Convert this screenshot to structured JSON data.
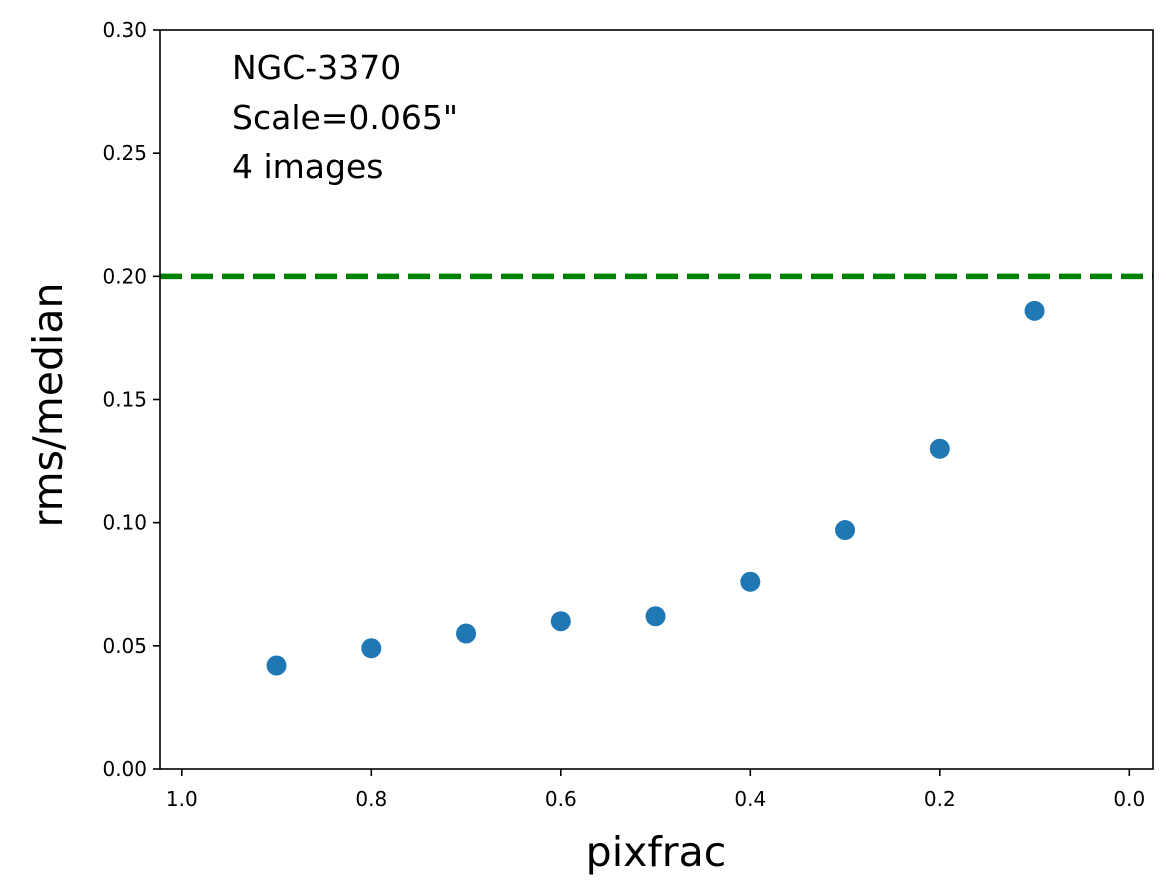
{
  "chart_data": {
    "type": "scatter",
    "xlabel": "pixfrac",
    "ylabel": "rms/median",
    "xlim": [
      1.023,
      -0.025
    ],
    "ylim": [
      0.0,
      0.3
    ],
    "x_inverted": true,
    "grid": false,
    "xticks": [
      {
        "value": 1.0,
        "label": "1.0"
      },
      {
        "value": 0.8,
        "label": "0.8"
      },
      {
        "value": 0.6,
        "label": "0.6"
      },
      {
        "value": 0.4,
        "label": "0.4"
      },
      {
        "value": 0.2,
        "label": "0.2"
      },
      {
        "value": 0.0,
        "label": "0.0"
      }
    ],
    "yticks": [
      {
        "value": 0.0,
        "label": "0.00"
      },
      {
        "value": 0.05,
        "label": "0.05"
      },
      {
        "value": 0.1,
        "label": "0.10"
      },
      {
        "value": 0.15,
        "label": "0.15"
      },
      {
        "value": 0.2,
        "label": "0.20"
      },
      {
        "value": 0.25,
        "label": "0.25"
      },
      {
        "value": 0.3,
        "label": "0.30"
      }
    ],
    "series": [
      {
        "color": "#1f77b4",
        "points": [
          {
            "x": 0.9,
            "y": 0.042
          },
          {
            "x": 0.8,
            "y": 0.049
          },
          {
            "x": 0.7,
            "y": 0.055
          },
          {
            "x": 0.6,
            "y": 0.06
          },
          {
            "x": 0.5,
            "y": 0.062
          },
          {
            "x": 0.4,
            "y": 0.076
          },
          {
            "x": 0.3,
            "y": 0.097
          },
          {
            "x": 0.2,
            "y": 0.13
          },
          {
            "x": 0.1,
            "y": 0.186
          }
        ]
      }
    ],
    "reference_line": {
      "y": 0.2,
      "color": "#008000",
      "style": "dashed"
    },
    "annotations": [
      "NGC-3370",
      "Scale=0.065\"",
      "4 images"
    ],
    "annotation_position": "top-left"
  }
}
